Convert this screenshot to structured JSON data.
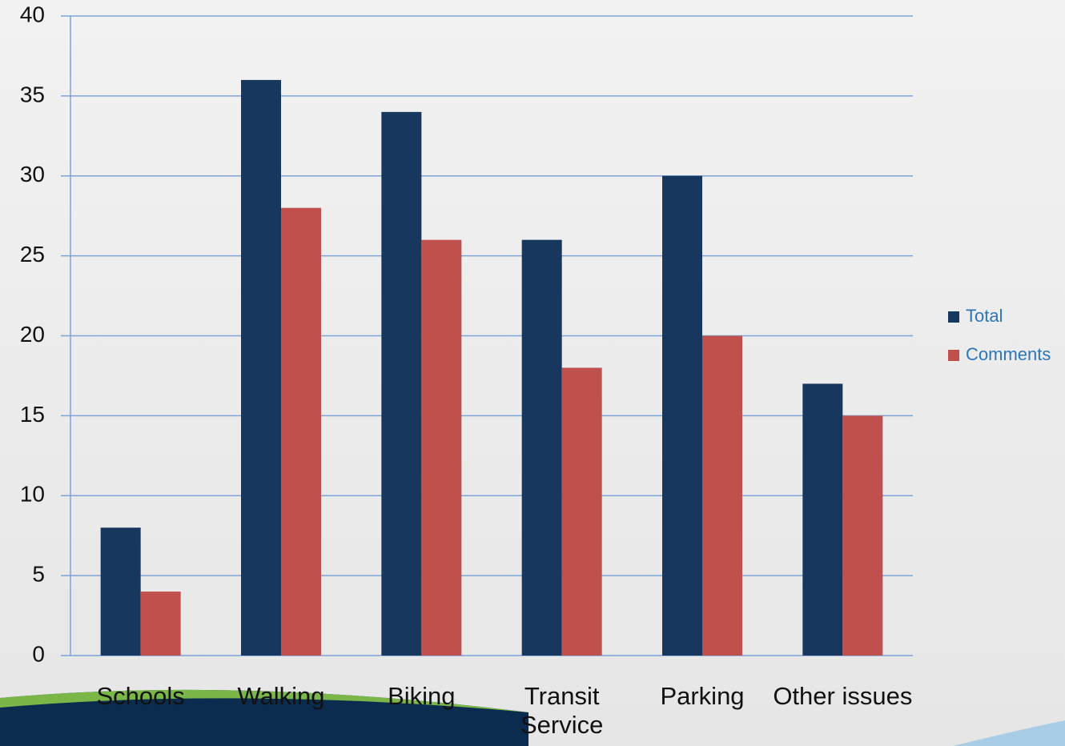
{
  "chart_data": {
    "type": "bar",
    "categories": [
      "Schools",
      "Walking",
      "Biking",
      "Transit Service",
      "Parking",
      "Other issues"
    ],
    "series": [
      {
        "name": "Total",
        "color": "#17375e",
        "values": [
          8,
          36,
          34,
          26,
          30,
          17
        ]
      },
      {
        "name": "Comments",
        "color": "#c0504d",
        "values": [
          4,
          28,
          26,
          18,
          20,
          15
        ]
      }
    ],
    "ylim": [
      0,
      40
    ],
    "yticks": [
      0,
      5,
      10,
      15,
      20,
      25,
      30,
      35,
      40
    ],
    "grid": true,
    "legend": "right"
  }
}
